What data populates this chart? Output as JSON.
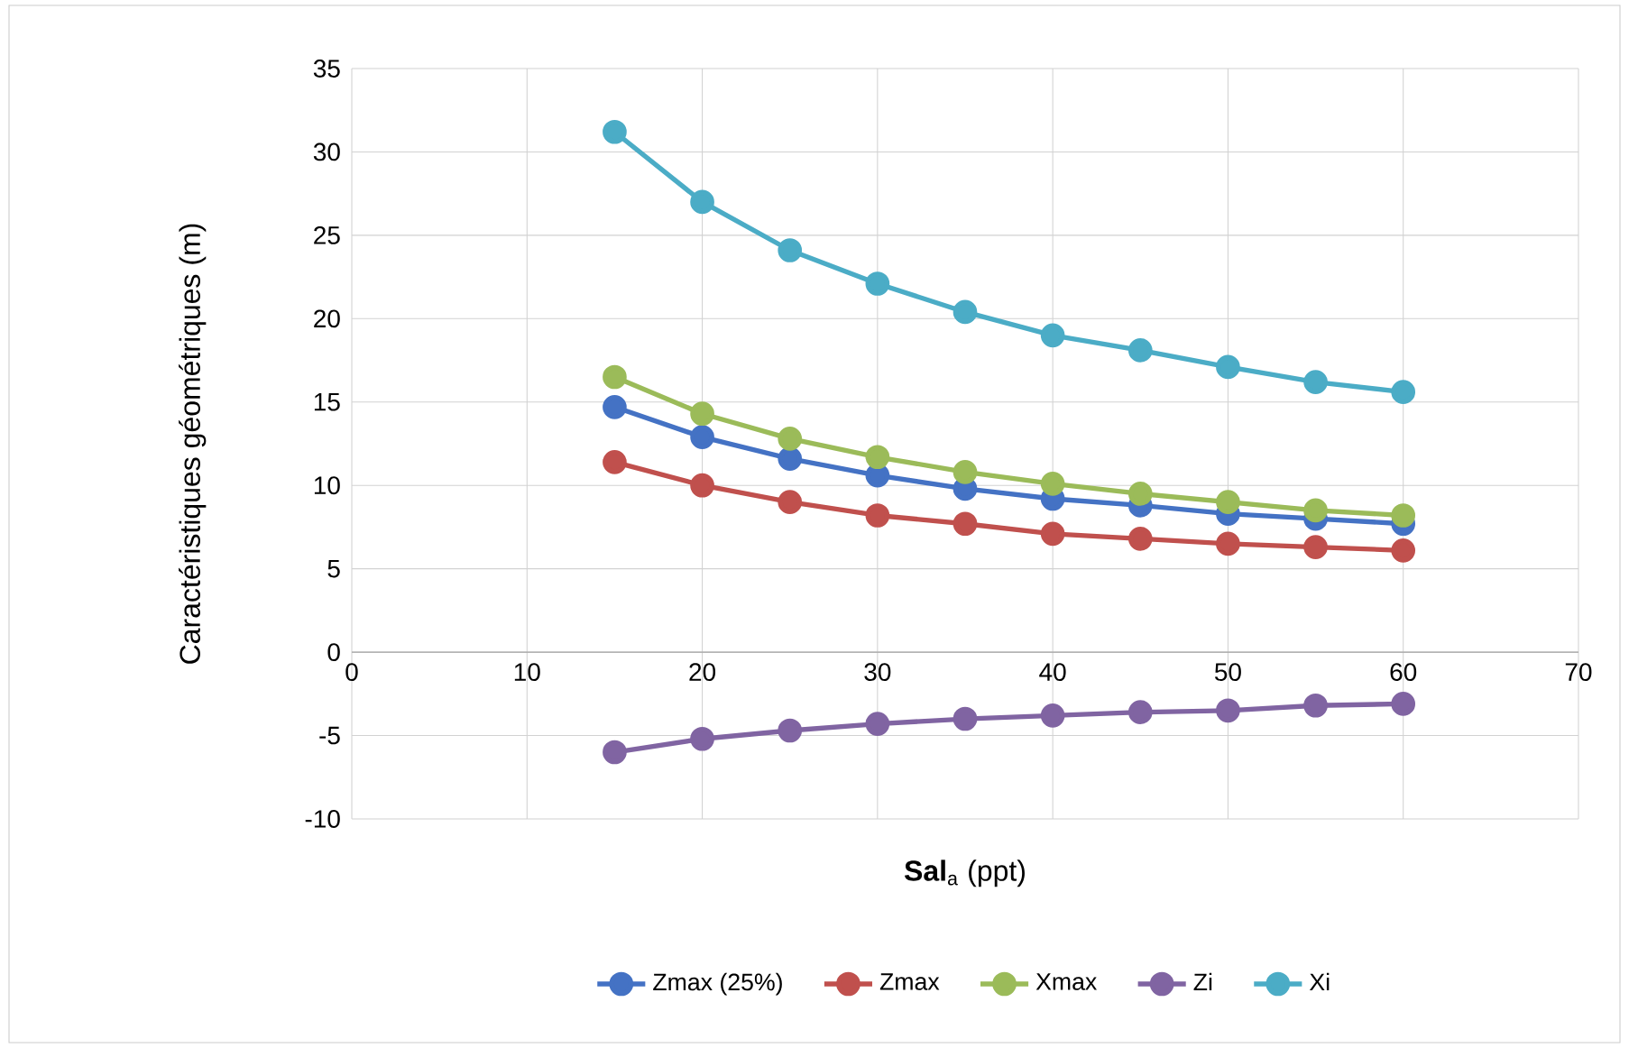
{
  "chart_data": {
    "type": "line",
    "xlabel": "**Sal**$_{a}$ (ppt)",
    "ylabel": "Caractéristiques géométriques (m)",
    "x": [
      15,
      20,
      25,
      30,
      35,
      40,
      45,
      50,
      55,
      60
    ],
    "series": [
      {
        "name": "Zmax (25%)",
        "color": "#4472c4",
        "values": [
          14.7,
          12.9,
          11.6,
          10.6,
          9.8,
          9.2,
          8.8,
          8.3,
          8.0,
          7.7
        ]
      },
      {
        "name": "Zmax",
        "color": "#c0504d",
        "values": [
          11.4,
          10.0,
          9.0,
          8.2,
          7.7,
          7.1,
          6.8,
          6.5,
          6.3,
          6.1
        ]
      },
      {
        "name": "Xmax",
        "color": "#9bbb59",
        "values": [
          16.5,
          14.3,
          12.8,
          11.7,
          10.8,
          10.1,
          9.5,
          9.0,
          8.5,
          8.2
        ]
      },
      {
        "name": "Zi",
        "color": "#8064a2",
        "values": [
          -6.0,
          -5.2,
          -4.7,
          -4.3,
          -4.0,
          -3.8,
          -3.6,
          -3.5,
          -3.2,
          -3.1
        ]
      },
      {
        "name": "Xi",
        "color": "#4bacc6",
        "values": [
          31.2,
          27.0,
          24.1,
          22.1,
          20.4,
          19.0,
          18.1,
          17.1,
          16.2,
          15.6
        ]
      }
    ],
    "xlim": [
      0,
      70
    ],
    "xticks": [
      0,
      10,
      20,
      30,
      40,
      50,
      60,
      70
    ],
    "ylim": [
      -10,
      35
    ],
    "yticks": [
      -10,
      -5,
      0,
      5,
      10,
      15,
      20,
      25,
      30,
      35
    ],
    "grid": true,
    "legend": "bottom",
    "marker": "circle",
    "line_style": "solid"
  }
}
